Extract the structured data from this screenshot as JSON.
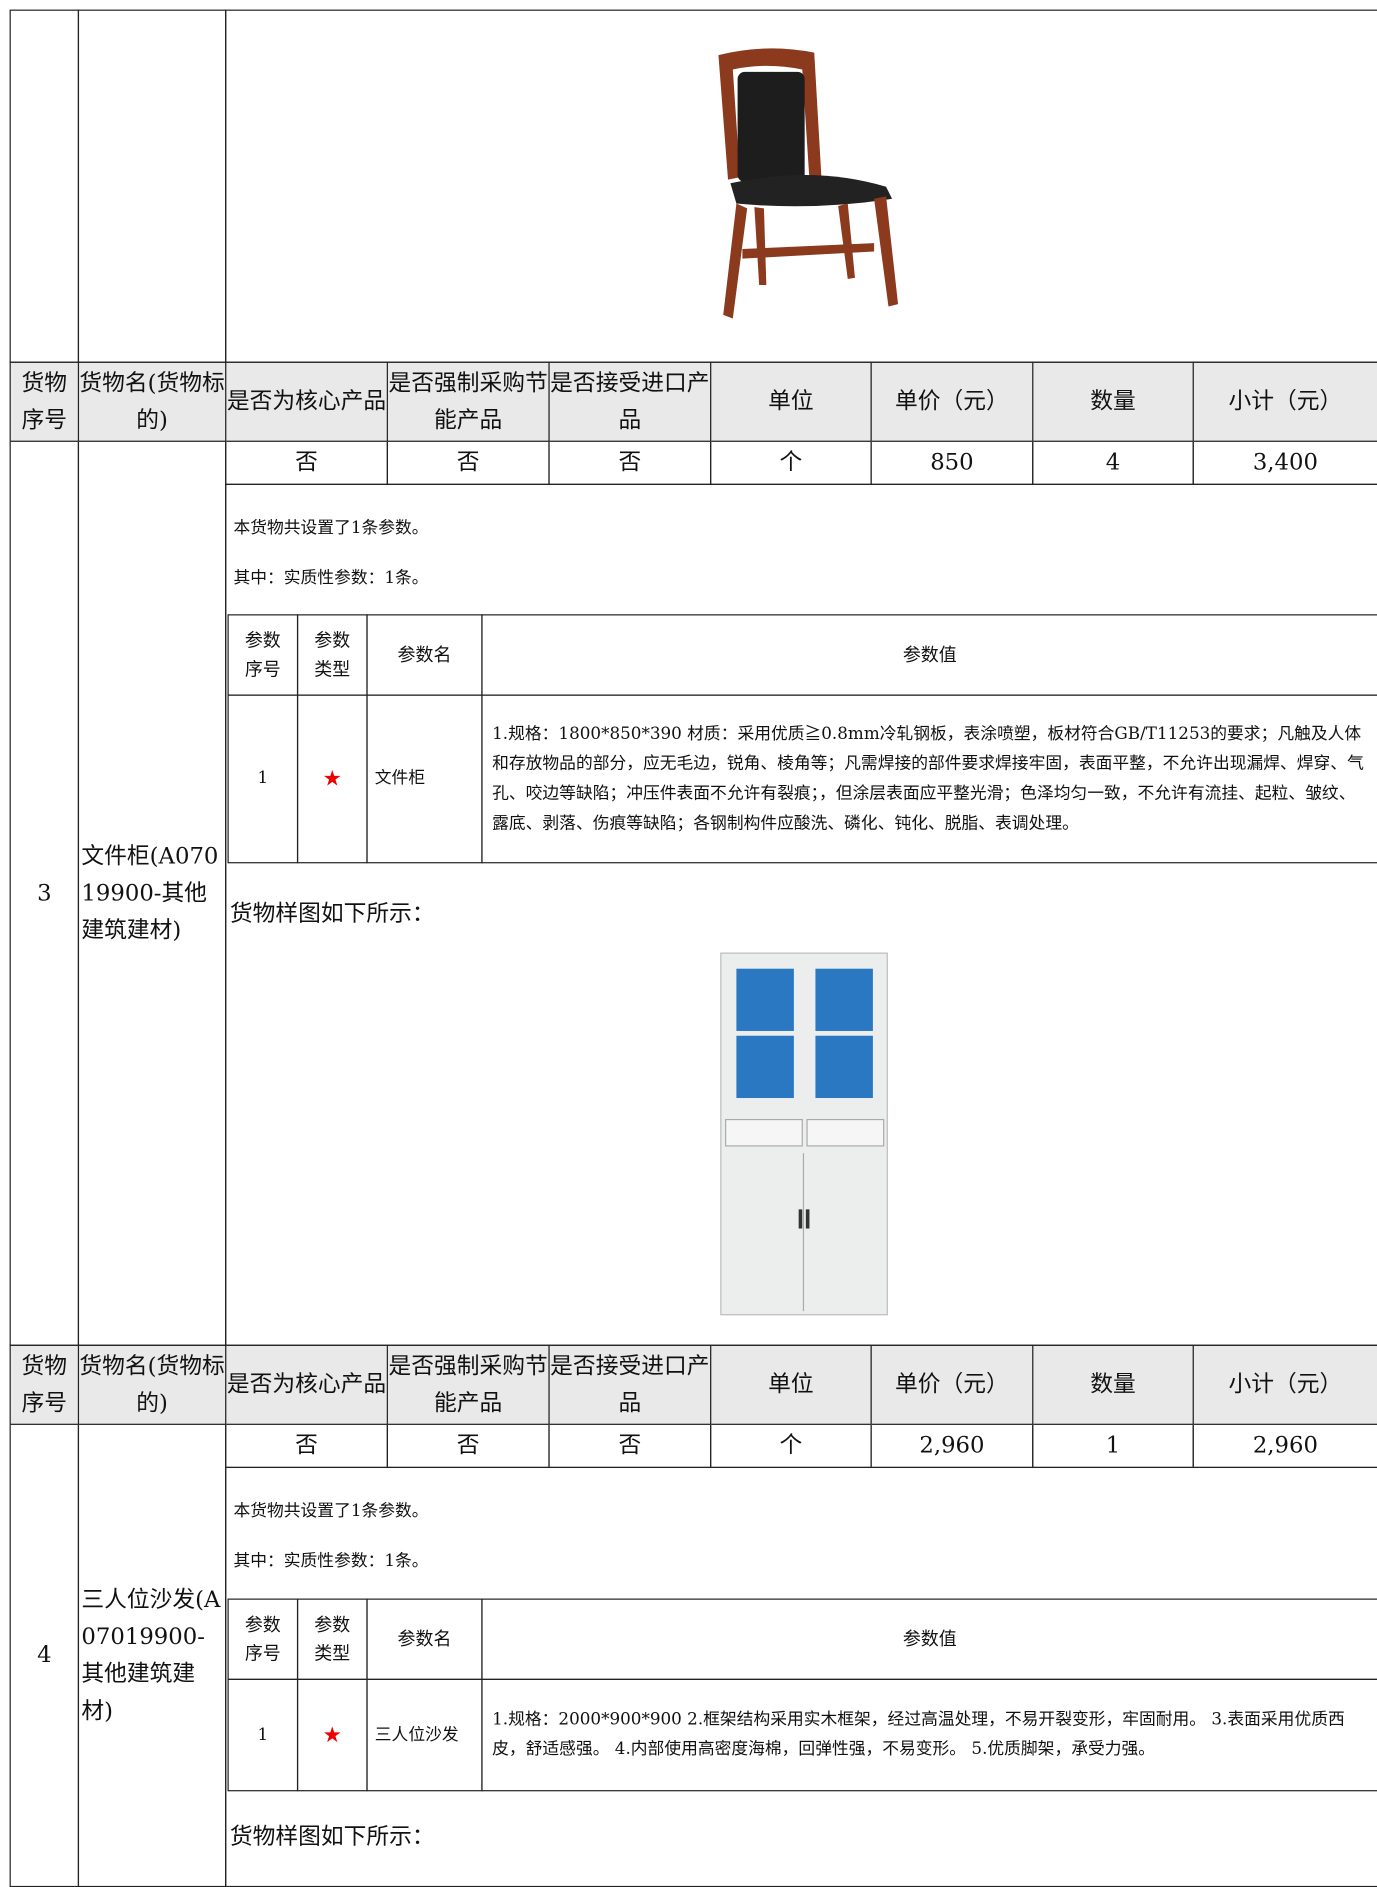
{
  "header": [
    "货物序号",
    "货物名(货物标的)",
    "是否为核心产品",
    "是否强制采购节能产品",
    "是否接受进口产品",
    "单位",
    "单价（元）",
    "数量",
    "小计（元）"
  ],
  "param_header": [
    "参数序号",
    "参数类型",
    "参数名",
    "参数值"
  ],
  "items": [
    {
      "seq": "3",
      "name": "文件柜(A07019900-其他建筑建材)",
      "row": [
        "否",
        "否",
        "否",
        "个",
        "850",
        "4",
        "3,400"
      ],
      "summary": [
        "本货物共设置了1条参数。",
        "其中：实质性参数：1条。"
      ],
      "params": [
        [
          "1",
          "★",
          "文件柜",
          "1.规格：1800*850*390 材质：采用优质≧0.8mm冷轧钢板，表涂喷塑，板材符合GB/T11253的要求；凡触及人体和存放物品的部分，应无毛边，锐角、棱角等；凡需焊接的部件要求焊接牢固，表面平整，不允许出现漏焊、焊穿、气孔、咬边等缺陷；冲压件表面不允许有裂痕；，但涂层表面应平整光滑；色泽均匀一致，不允许有流挂、起粒、皱纹、露底、剥落、伤痕等缺陷；各钢制构件应酸洗、磷化、钝化、脱脂、表调处理。"
        ]
      ],
      "sample": "货物样图如下所示："
    },
    {
      "seq": "4",
      "name": "三人位沙发(A07019900-其他建筑建材)",
      "row": [
        "否",
        "否",
        "否",
        "个",
        "2,960",
        "1",
        "2,960"
      ],
      "summary": [
        "本货物共设置了1条参数。",
        "其中：实质性参数：1条。"
      ],
      "params": [
        [
          "1",
          "★",
          "三人位沙发",
          "1.规格：2000*900*900 2.框架结构采用实木框架，经过高温处理，不易开裂变形，牢固耐用。 3.表面采用优质西皮，舒适感强。 4.内部使用高密度海棉，回弹性强，不易变形。 5.优质脚架，承受力强。"
        ]
      ],
      "sample": "货物样图如下所示："
    }
  ]
}
